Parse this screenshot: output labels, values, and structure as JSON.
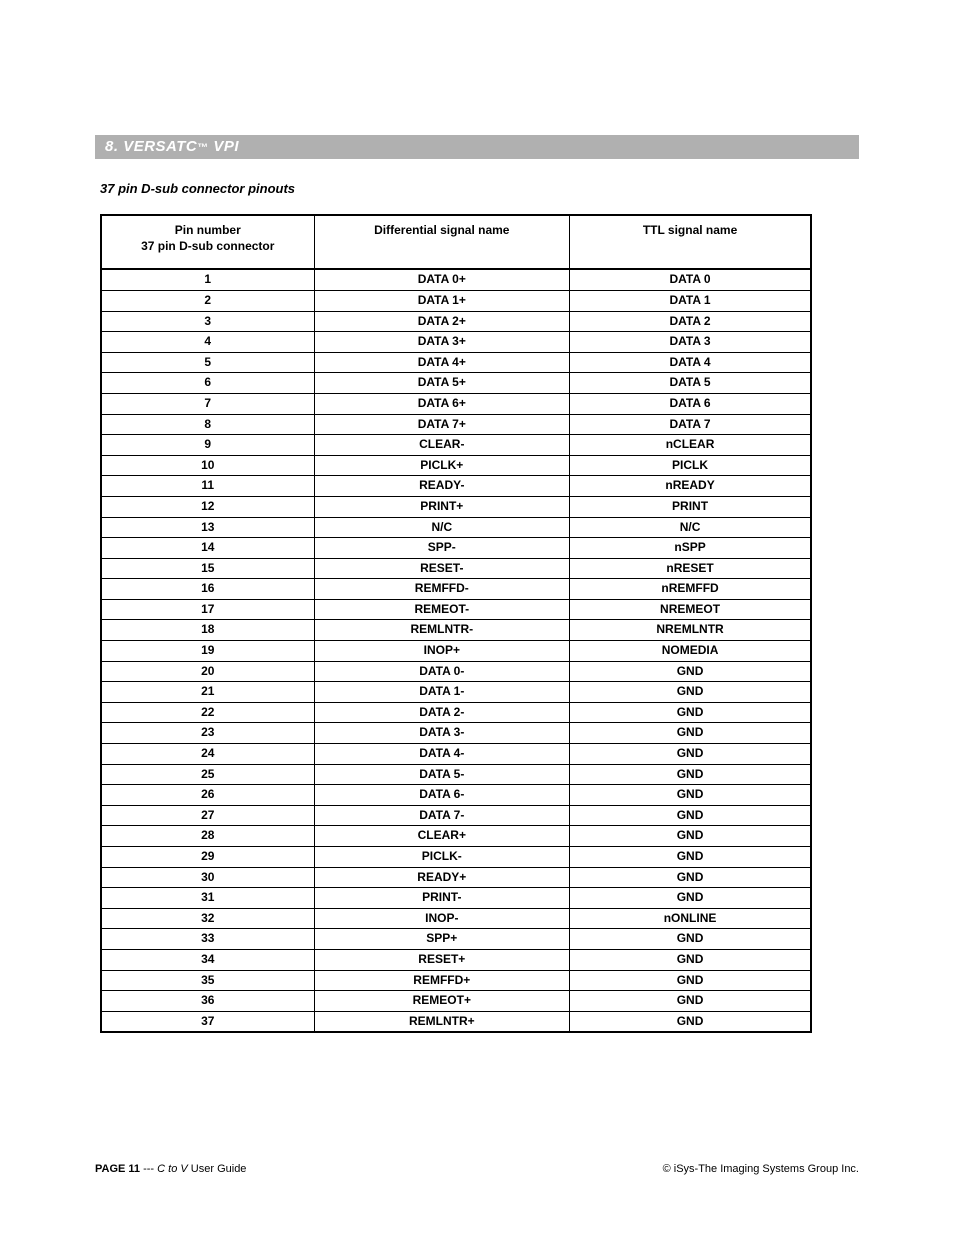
{
  "section": {
    "number": "8.",
    "title_1": "VERSATC",
    "tm": "™",
    "title_2": "VPI"
  },
  "subtitle": "37 pin D-sub connector pinouts",
  "table": {
    "columns": {
      "pin_line1": "Pin number",
      "pin_line2": "37 pin D-sub connector",
      "diff": "Differential signal name",
      "ttl": "TTL signal name"
    },
    "rows": [
      {
        "pin": "1",
        "diff": "DATA 0+",
        "ttl": "DATA 0"
      },
      {
        "pin": "2",
        "diff": "DATA 1+",
        "ttl": "DATA 1"
      },
      {
        "pin": "3",
        "diff": "DATA 2+",
        "ttl": "DATA 2"
      },
      {
        "pin": "4",
        "diff": "DATA 3+",
        "ttl": "DATA 3"
      },
      {
        "pin": "5",
        "diff": "DATA 4+",
        "ttl": "DATA 4"
      },
      {
        "pin": "6",
        "diff": "DATA 5+",
        "ttl": "DATA 5"
      },
      {
        "pin": "7",
        "diff": "DATA 6+",
        "ttl": "DATA 6"
      },
      {
        "pin": "8",
        "diff": "DATA 7+",
        "ttl": "DATA 7"
      },
      {
        "pin": "9",
        "diff": "CLEAR-",
        "ttl": "nCLEAR"
      },
      {
        "pin": "10",
        "diff": "PICLK+",
        "ttl": "PICLK"
      },
      {
        "pin": "11",
        "diff": "READY-",
        "ttl": "nREADY"
      },
      {
        "pin": "12",
        "diff": "PRINT+",
        "ttl": "PRINT"
      },
      {
        "pin": "13",
        "diff": "N/C",
        "ttl": "N/C"
      },
      {
        "pin": "14",
        "diff": "SPP-",
        "ttl": "nSPP"
      },
      {
        "pin": "15",
        "diff": "RESET-",
        "ttl": "nRESET"
      },
      {
        "pin": "16",
        "diff": "REMFFD-",
        "ttl": "nREMFFD"
      },
      {
        "pin": "17",
        "diff": "REMEOT-",
        "ttl": "NREMEOT"
      },
      {
        "pin": "18",
        "diff": "REMLNTR-",
        "ttl": "NREMLNTR"
      },
      {
        "pin": "19",
        "diff": "INOP+",
        "ttl": "NOMEDIA"
      },
      {
        "pin": "20",
        "diff": "DATA 0-",
        "ttl": "GND"
      },
      {
        "pin": "21",
        "diff": "DATA 1-",
        "ttl": "GND"
      },
      {
        "pin": "22",
        "diff": "DATA 2-",
        "ttl": "GND"
      },
      {
        "pin": "23",
        "diff": "DATA 3-",
        "ttl": "GND"
      },
      {
        "pin": "24",
        "diff": "DATA 4-",
        "ttl": "GND"
      },
      {
        "pin": "25",
        "diff": "DATA 5-",
        "ttl": "GND"
      },
      {
        "pin": "26",
        "diff": "DATA 6-",
        "ttl": "GND"
      },
      {
        "pin": "27",
        "diff": "DATA 7-",
        "ttl": "GND"
      },
      {
        "pin": "28",
        "diff": "CLEAR+",
        "ttl": "GND"
      },
      {
        "pin": "29",
        "diff": "PICLK-",
        "ttl": "GND"
      },
      {
        "pin": "30",
        "diff": "READY+",
        "ttl": "GND"
      },
      {
        "pin": "31",
        "diff": "PRINT-",
        "ttl": "GND"
      },
      {
        "pin": "32",
        "diff": "INOP-",
        "ttl": "nONLINE"
      },
      {
        "pin": "33",
        "diff": "SPP+",
        "ttl": "GND"
      },
      {
        "pin": "34",
        "diff": "RESET+",
        "ttl": "GND"
      },
      {
        "pin": "35",
        "diff": "REMFFD+",
        "ttl": "GND"
      },
      {
        "pin": "36",
        "diff": "REMEOT+",
        "ttl": "GND"
      },
      {
        "pin": "37",
        "diff": "REMLNTR+",
        "ttl": "GND"
      }
    ]
  },
  "footer": {
    "page_label": "PAGE 11",
    "dashes": " --- ",
    "guide_italic": "C to V",
    "guide_rest": " User Guide",
    "copyright": "© iSys-The Imaging Systems Group Inc."
  }
}
